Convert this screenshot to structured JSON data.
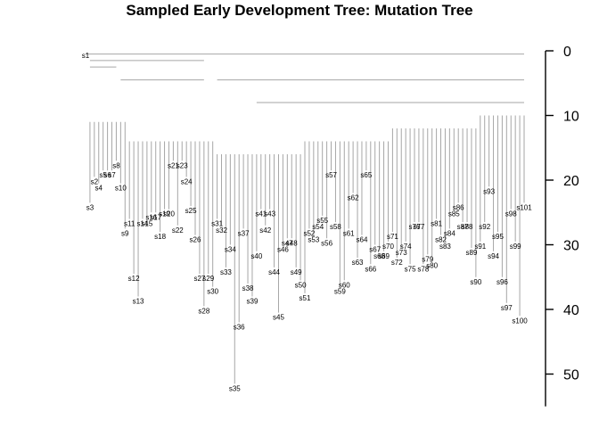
{
  "chart_data": {
    "type": "dendrogram",
    "title": "Sampled Early Development Tree: Mutation Tree",
    "axis": {
      "position": "right",
      "range": [
        0,
        55
      ],
      "reversed": true,
      "ticks": [
        "0",
        "10",
        "20",
        "30",
        "40",
        "50"
      ],
      "tick_values": [
        0,
        10,
        20,
        30,
        40,
        50
      ]
    },
    "grid": false,
    "line_color": "#a6a6a6",
    "leaf_order": [
      "s1",
      "s3",
      "s2",
      "s4",
      "s5",
      "s6",
      "s7",
      "s8",
      "s10",
      "s9",
      "s11",
      "s12",
      "s13",
      "s14",
      "s15",
      "s16",
      "s17",
      "s18",
      "s19",
      "s20",
      "s21",
      "s22",
      "s23",
      "s24",
      "s25",
      "s26",
      "s27",
      "s28",
      "s29",
      "s30",
      "s31",
      "s32",
      "s33",
      "s34",
      "s35",
      "s36",
      "s37",
      "s38",
      "s39",
      "s40",
      "s41",
      "s42",
      "s43",
      "s44",
      "s45",
      "s46",
      "s47",
      "s48",
      "s49",
      "s50",
      "s51",
      "s52",
      "s53",
      "s54",
      "s55",
      "s56",
      "s57",
      "s58",
      "s59",
      "s60",
      "s61",
      "s62",
      "s63",
      "s64",
      "s65",
      "s66",
      "s67",
      "s68",
      "s69",
      "s70",
      "s71",
      "s72",
      "s73",
      "s74",
      "s75",
      "s76",
      "s77",
      "s78",
      "s79",
      "s80",
      "s81",
      "s82",
      "s83",
      "s84",
      "s85",
      "s86",
      "s87",
      "s88",
      "s89",
      "s90",
      "s91",
      "s92",
      "s93",
      "s94",
      "s95",
      "s96",
      "s97",
      "s98",
      "s99",
      "s100",
      "s101"
    ],
    "leaf_heights": {
      "s1": 0,
      "s2": 19.5,
      "s3": 23.5,
      "s4": 20.5,
      "s5": 18.5,
      "s6": 18.5,
      "s7": 18.5,
      "s8": 17,
      "s9": 27.5,
      "s10": 20.5,
      "s11": 26,
      "s12": 34.5,
      "s13": 38,
      "s14": 26,
      "s15": 26,
      "s16": 25,
      "s17": 25,
      "s18": 28,
      "s19": 24.5,
      "s20": 24.5,
      "s21": 17,
      "s22": 27,
      "s23": 17,
      "s24": 19.5,
      "s25": 24,
      "s26": 28.5,
      "s27": 34.5,
      "s28": 39.5,
      "s29": 34.5,
      "s30": 36.5,
      "s31": 26,
      "s32": 27,
      "s33": 33.5,
      "s34": 30,
      "s35": 51.5,
      "s36": 42,
      "s37": 27.5,
      "s38": 36,
      "s39": 38,
      "s40": 31,
      "s41": 24.5,
      "s42": 27,
      "s43": 24.5,
      "s44": 33.5,
      "s45": 40.5,
      "s46": 30,
      "s47": 29,
      "s48": 29,
      "s49": 33.5,
      "s50": 35.5,
      "s51": 37.5,
      "s52": 27.5,
      "s53": 28.5,
      "s54": 26.5,
      "s55": 25.5,
      "s56": 29,
      "s57": 18.5,
      "s58": 26.5,
      "s59": 36.5,
      "s60": 35.5,
      "s61": 27.5,
      "s62": 22,
      "s63": 32,
      "s64": 28.5,
      "s65": 18.5,
      "s66": 33,
      "s67": 30,
      "s68": 31,
      "s69": 31,
      "s70": 29.5,
      "s71": 28,
      "s72": 32,
      "s73": 30.5,
      "s74": 29.5,
      "s75": 33,
      "s76": 26.5,
      "s77": 26.5,
      "s78": 33,
      "s79": 31.5,
      "s80": 32.5,
      "s81": 26,
      "s82": 28.5,
      "s83": 29.5,
      "s84": 27.5,
      "s85": 24.5,
      "s86": 23.5,
      "s87": 26.5,
      "s88": 26.5,
      "s89": 30.5,
      "s90": 35,
      "s91": 29.5,
      "s92": 26.5,
      "s93": 21,
      "s94": 31,
      "s95": 28,
      "s96": 35,
      "s97": 39,
      "s98": 24.5,
      "s99": 29.5,
      "s100": 41,
      "s101": 23.5
    },
    "merges": [
      {
        "height": 0.5,
        "span": [
          "s1",
          "s101"
        ]
      },
      {
        "height": 1.5,
        "span": [
          "s3",
          "s28"
        ]
      },
      {
        "height": 2.5,
        "span": [
          "s3",
          "s8"
        ]
      },
      {
        "height": 4.5,
        "span": [
          "s10",
          "s28"
        ]
      },
      {
        "height": 4.5,
        "span": [
          "s31",
          "s101"
        ]
      },
      {
        "height": 8,
        "span": [
          "s40",
          "s101"
        ]
      }
    ]
  }
}
